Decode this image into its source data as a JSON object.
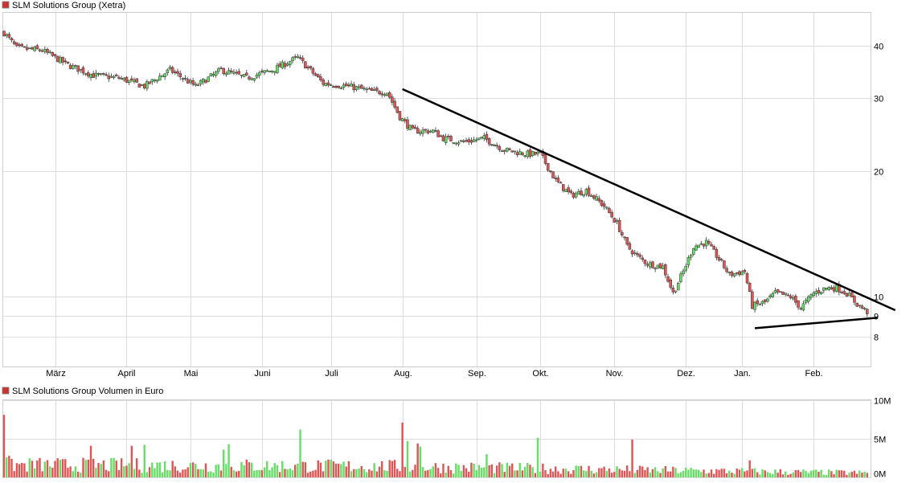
{
  "colors": {
    "up": "#66dd66",
    "down": "#dd5555",
    "grid": "#dddddd",
    "frame": "#cccccc",
    "trendline": "#000000",
    "legend_marker": "#cc3333"
  },
  "chart_data": [
    {
      "type": "candlestick",
      "title": "SLM Solutions Group (Xetra)",
      "y_scale": "log",
      "ylim": [
        6.8,
        48
      ],
      "y_ticks": [
        8,
        9,
        10,
        20,
        30,
        40
      ],
      "y_tick_labels": [
        "8",
        "9",
        "10",
        "20",
        "30",
        "40"
      ],
      "x_ticks": [
        "März",
        "April",
        "Mai",
        "Juni",
        "Juli",
        "Aug.",
        "Sep.",
        "Okt.",
        "Nov.",
        "Dez.",
        "Jan.",
        "Feb."
      ],
      "x_tick_day_index": [
        20,
        48,
        73,
        101,
        128,
        156,
        185,
        210,
        239,
        267,
        289,
        317
      ],
      "day_count": 339,
      "close_path": [
        [
          0,
          43
        ],
        [
          5,
          39.5
        ],
        [
          15,
          39
        ],
        [
          25,
          36
        ],
        [
          35,
          34
        ],
        [
          45,
          33.5
        ],
        [
          55,
          32
        ],
        [
          65,
          35
        ],
        [
          75,
          32
        ],
        [
          85,
          35
        ],
        [
          95,
          33.5
        ],
        [
          105,
          35
        ],
        [
          115,
          37.5
        ],
        [
          125,
          32.5
        ],
        [
          135,
          32
        ],
        [
          145,
          31
        ],
        [
          150,
          31
        ],
        [
          155,
          27
        ],
        [
          160,
          25
        ],
        [
          168,
          25
        ],
        [
          172,
          24
        ],
        [
          180,
          23.5
        ],
        [
          188,
          24
        ],
        [
          196,
          22.5
        ],
        [
          205,
          22
        ],
        [
          210,
          22
        ],
        [
          216,
          19
        ],
        [
          222,
          17.5
        ],
        [
          228,
          18
        ],
        [
          235,
          16.5
        ],
        [
          240,
          15
        ],
        [
          244,
          13.2
        ],
        [
          248,
          12.5
        ],
        [
          252,
          12
        ],
        [
          258,
          11.8
        ],
        [
          262,
          10.2
        ],
        [
          266,
          11.5
        ],
        [
          270,
          13.2
        ],
        [
          275,
          13.5
        ],
        [
          280,
          12.3
        ],
        [
          284,
          11.3
        ],
        [
          290,
          11.5
        ],
        [
          293,
          9.5
        ],
        [
          298,
          9.7
        ],
        [
          302,
          10.2
        ],
        [
          308,
          10
        ],
        [
          312,
          9.4
        ],
        [
          317,
          10.2
        ],
        [
          322,
          10.5
        ],
        [
          326,
          10.5
        ],
        [
          330,
          10.2
        ],
        [
          334,
          9.6
        ],
        [
          339,
          9.1
        ]
      ],
      "trendlines": [
        {
          "from": [
            156,
            31.5
          ],
          "to": [
            342,
            9.7
          ],
          "extend_to_day": 349
        },
        {
          "from": [
            294,
            8.4
          ],
          "to": [
            342,
            8.9
          ]
        }
      ]
    },
    {
      "type": "bar",
      "title": "SLM Solutions Group Volumen in Euro",
      "ylim": [
        0,
        10
      ],
      "y_ticks": [
        0,
        5,
        10
      ],
      "y_tick_labels": [
        "0M",
        "5M",
        "10M"
      ],
      "x_ticks": [
        "März",
        "April",
        "Mai",
        "Juni",
        "Juli",
        "Aug.",
        "Sep.",
        "Okt.",
        "Nov.",
        "Dez.",
        "Jan.",
        "Feb."
      ],
      "day_count": 339,
      "spikes": [
        {
          "day": 0,
          "value": 8.1,
          "dir": "down"
        },
        {
          "day": 2,
          "value": 2.8,
          "dir": "down"
        },
        {
          "day": 3,
          "value": 2.4,
          "dir": "down"
        },
        {
          "day": 34,
          "value": 4.1,
          "dir": "down"
        },
        {
          "day": 50,
          "value": 4.1,
          "dir": "down"
        },
        {
          "day": 55,
          "value": 4.2,
          "dir": "up"
        },
        {
          "day": 86,
          "value": 3.6,
          "dir": "up"
        },
        {
          "day": 88,
          "value": 4.3,
          "dir": "up"
        },
        {
          "day": 116,
          "value": 6.2,
          "dir": "up"
        },
        {
          "day": 156,
          "value": 7.1,
          "dir": "down"
        },
        {
          "day": 158,
          "value": 4.7,
          "dir": "up"
        },
        {
          "day": 162,
          "value": 4.4,
          "dir": "down"
        },
        {
          "day": 163,
          "value": 4.0,
          "dir": "up"
        },
        {
          "day": 189,
          "value": 3.0,
          "dir": "up"
        },
        {
          "day": 209,
          "value": 5.1,
          "dir": "up"
        },
        {
          "day": 246,
          "value": 4.9,
          "dir": "down"
        },
        {
          "day": 292,
          "value": 2.2,
          "dir": "down"
        }
      ],
      "avg_level": [
        [
          0,
          1.7
        ],
        [
          150,
          1.5
        ],
        [
          250,
          1.0
        ],
        [
          339,
          0.6
        ]
      ]
    }
  ]
}
